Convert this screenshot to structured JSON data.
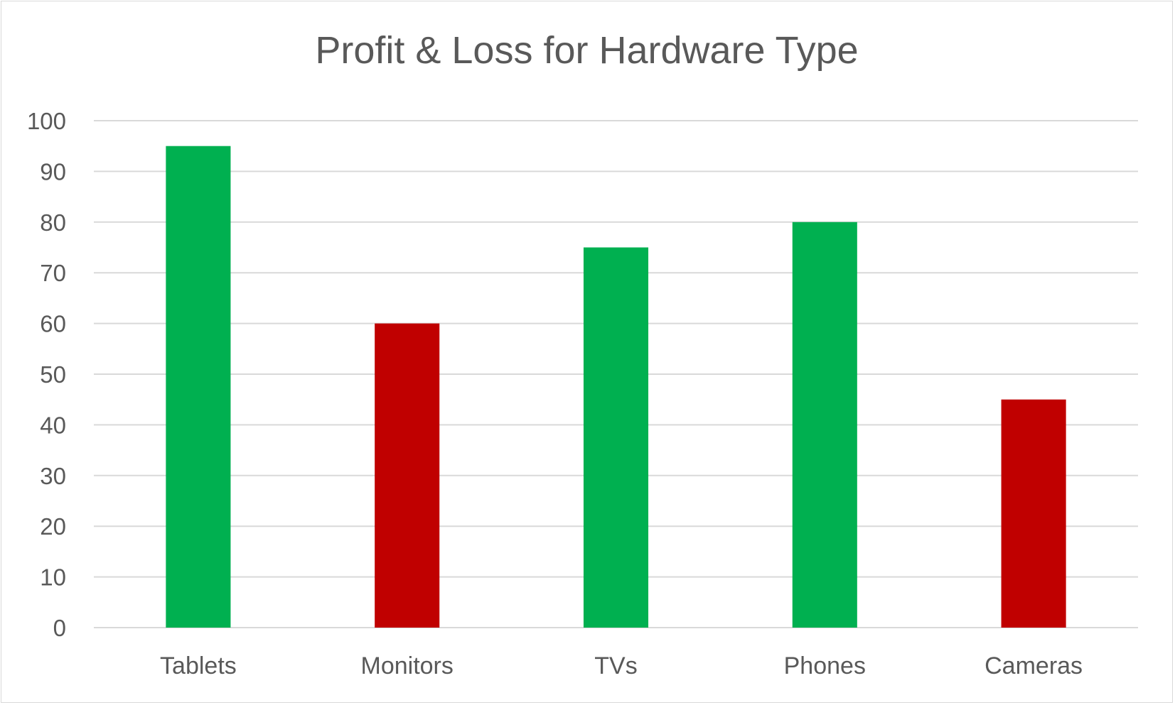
{
  "chart_data": {
    "type": "bar",
    "title": "Profit & Loss for Hardware Type",
    "xlabel": "",
    "ylabel": "",
    "categories": [
      "Tablets",
      "Monitors",
      "TVs",
      "Phones",
      "Cameras"
    ],
    "values": [
      95,
      60,
      75,
      80,
      45
    ],
    "status": [
      "profit",
      "loss",
      "profit",
      "profit",
      "loss"
    ],
    "ylim": [
      0,
      100
    ],
    "yticks": [
      0,
      10,
      20,
      30,
      40,
      50,
      60,
      70,
      80,
      90,
      100
    ],
    "grid": true,
    "legend": "none",
    "colors": {
      "profit": "#00b050",
      "loss": "#c00000",
      "grid": "#d9d9d9",
      "axis": "#d9d9d9",
      "text": "#595959"
    }
  }
}
